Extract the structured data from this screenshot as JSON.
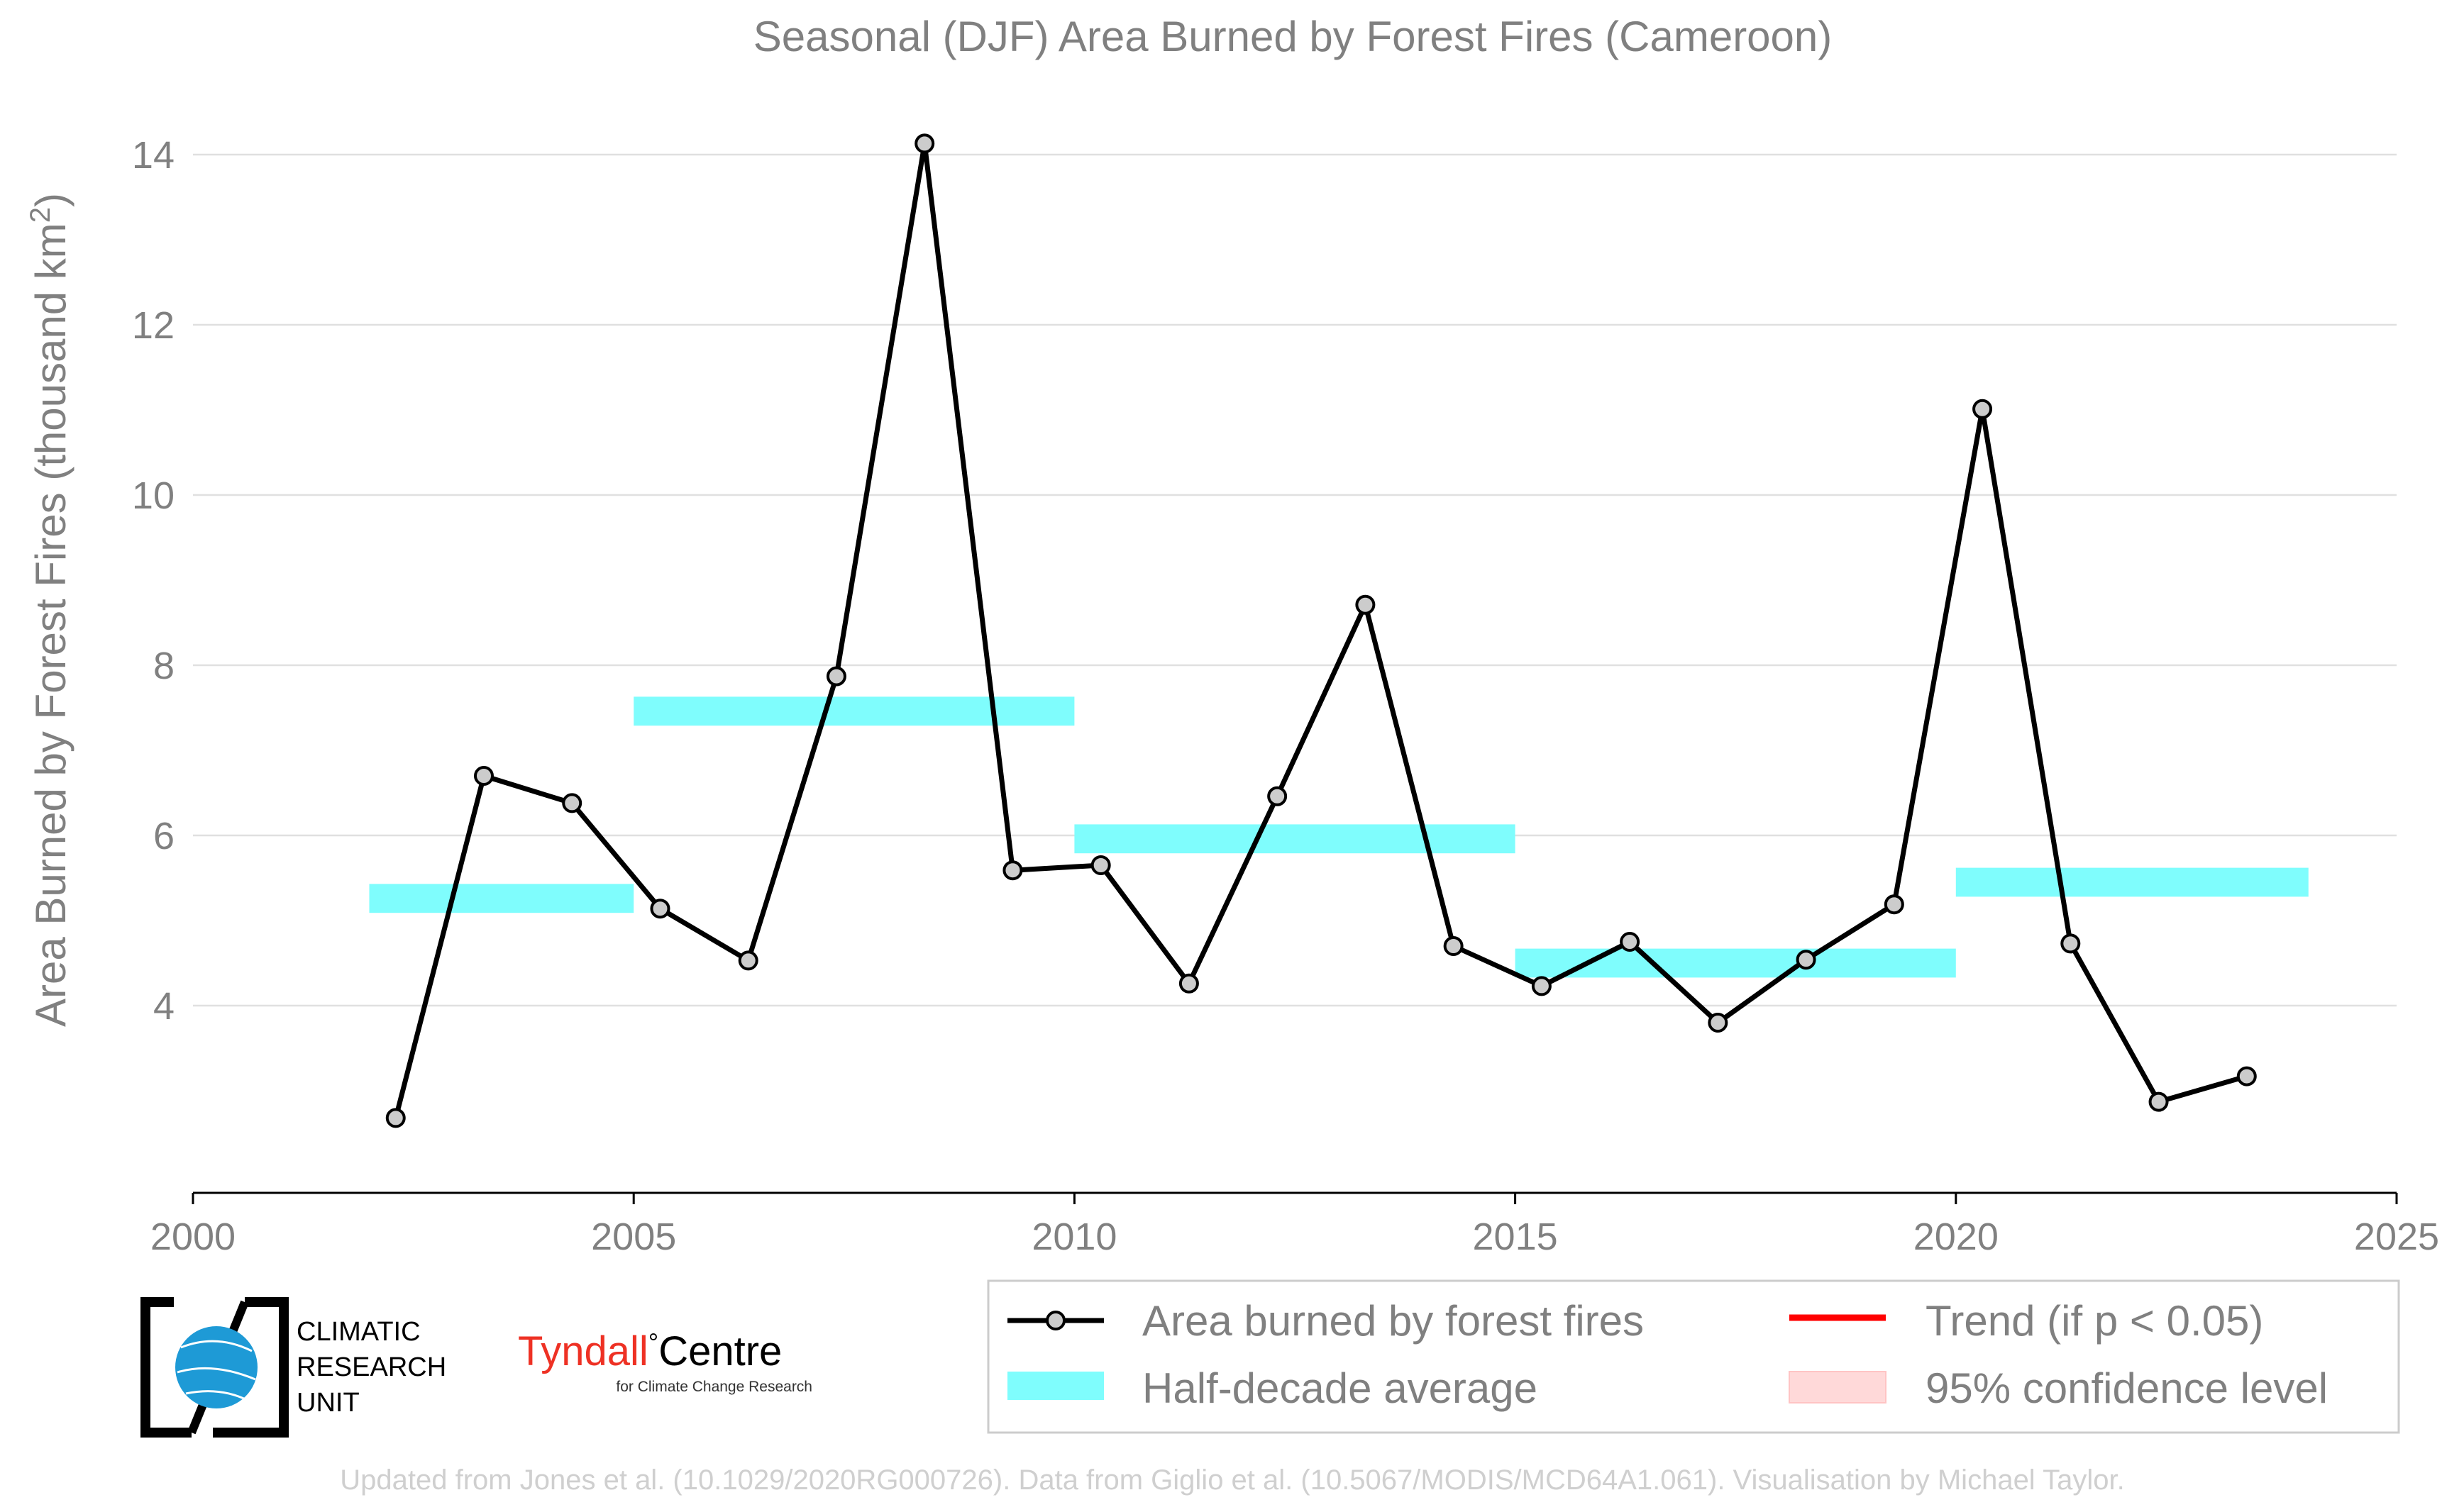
{
  "chart_data": {
    "type": "line",
    "title": "Seasonal (DJF) Area Burned by Forest Fires (Cameroon)",
    "ylabel_main": "Area Burned by Forest Fires (thousand km",
    "ylabel_sup": "2",
    "ylabel_end": ")",
    "xlabel": "",
    "xlim": [
      2000,
      2025
    ],
    "ylim": [
      1.8,
      14.5
    ],
    "x_ticks": [
      2000,
      2005,
      2010,
      2015,
      2020,
      2025
    ],
    "y_ticks": [
      4,
      6,
      8,
      10,
      12,
      14
    ],
    "grid": "horizontal",
    "series": [
      {
        "name": "Area burned by forest fires",
        "color": "#000000",
        "marker_fill": "#cccccc",
        "points": [
          {
            "x": 2002.3,
            "y": 2.68
          },
          {
            "x": 2003.3,
            "y": 6.7
          },
          {
            "x": 2004.3,
            "y": 6.38
          },
          {
            "x": 2005.3,
            "y": 5.14
          },
          {
            "x": 2006.3,
            "y": 4.53
          },
          {
            "x": 2007.3,
            "y": 7.87
          },
          {
            "x": 2008.3,
            "y": 14.13
          },
          {
            "x": 2009.3,
            "y": 5.59
          },
          {
            "x": 2010.3,
            "y": 5.65
          },
          {
            "x": 2011.3,
            "y": 4.26
          },
          {
            "x": 2012.3,
            "y": 6.46
          },
          {
            "x": 2013.3,
            "y": 8.71
          },
          {
            "x": 2014.3,
            "y": 4.7
          },
          {
            "x": 2015.3,
            "y": 4.23
          },
          {
            "x": 2016.3,
            "y": 4.75
          },
          {
            "x": 2017.3,
            "y": 3.8
          },
          {
            "x": 2018.3,
            "y": 4.54
          },
          {
            "x": 2019.3,
            "y": 5.19
          },
          {
            "x": 2020.3,
            "y": 11.01
          },
          {
            "x": 2021.3,
            "y": 4.73
          },
          {
            "x": 2022.3,
            "y": 2.87
          },
          {
            "x": 2023.3,
            "y": 3.17
          }
        ]
      }
    ],
    "half_decade_averages": {
      "name": "Half-decade average",
      "color": "#7ffdfd",
      "segments": [
        {
          "x0": 2002,
          "x1": 2005,
          "y": 5.26
        },
        {
          "x0": 2005,
          "x1": 2010,
          "y": 7.46
        },
        {
          "x0": 2010,
          "x1": 2015,
          "y": 5.96
        },
        {
          "x0": 2015,
          "x1": 2020,
          "y": 4.5
        },
        {
          "x0": 2020,
          "x1": 2024,
          "y": 5.45
        }
      ]
    },
    "legend": {
      "placement": "bottom-right",
      "entries": [
        {
          "label": "Area burned by forest fires",
          "kind": "line-marker",
          "color": "#000000"
        },
        {
          "label": "Trend (if p < 0.05)",
          "kind": "line",
          "color": "#ff0000"
        },
        {
          "label": "Half-decade average",
          "kind": "band",
          "color": "#7ffdfd"
        },
        {
          "label": "95% confidence level",
          "kind": "patch",
          "color": "#ffd9d9"
        }
      ]
    }
  },
  "logos": {
    "cru_line1": "CLIMATIC",
    "cru_line2": "RESEARCH",
    "cru_line3": "UNIT",
    "tyndall_main": "Tyndall",
    "tyndall_degree": "°",
    "tyndall_centre": "Centre",
    "tyndall_sub": "for Climate Change Research"
  },
  "footer": "Updated from Jones et al. (10.1029/2020RG000726). Data from Giglio et al. (10.5067/MODIS/MCD64A1.061). Visualisation by Michael Taylor.",
  "colors": {
    "axis_text": "#808080",
    "grid": "#e0e0e0",
    "footer_text": "#cfcfcf",
    "tyndall_red": "#ee3124",
    "cru_blue": "#1e9ad6"
  }
}
